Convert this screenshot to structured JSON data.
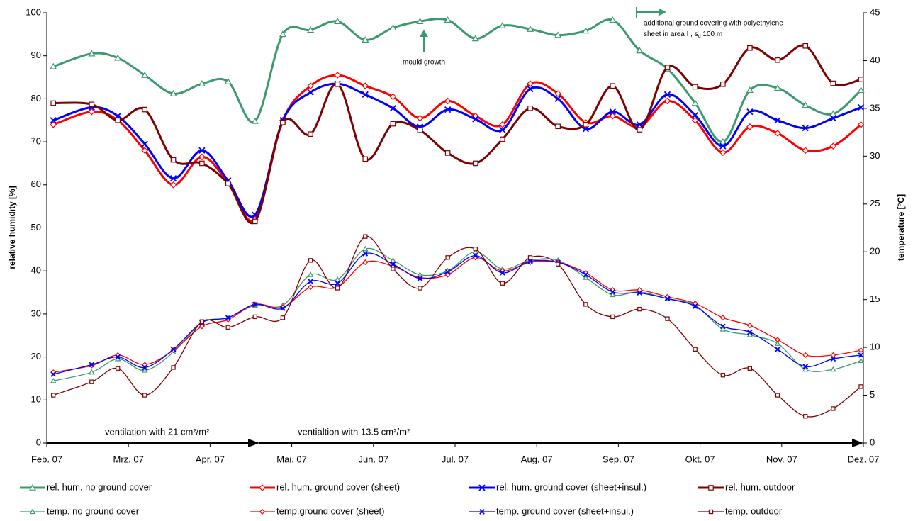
{
  "chart_data": {
    "type": "line",
    "y_label": "relative humidity [%]",
    "y2_label": "temperature [°C]",
    "xlim": [
      0,
      10
    ],
    "xticks": [
      {
        "value": 0,
        "label": "Feb. 07"
      },
      {
        "value": 1,
        "label": "Mrz. 07"
      },
      {
        "value": 2,
        "label": "Apr. 07"
      },
      {
        "value": 3,
        "label": "Mai. 07"
      },
      {
        "value": 4,
        "label": "Jun. 07"
      },
      {
        "value": 5,
        "label": "Jul. 07"
      },
      {
        "value": 6,
        "label": "Aug. 07"
      },
      {
        "value": 7,
        "label": "Sep. 07"
      },
      {
        "value": 8,
        "label": "Okt. 07"
      },
      {
        "value": 9,
        "label": "Nov. 07"
      },
      {
        "value": 10,
        "label": "Dez. 07"
      }
    ],
    "ylim": [
      0,
      100
    ],
    "yticks": [
      0,
      10,
      20,
      30,
      40,
      50,
      60,
      70,
      80,
      90,
      100
    ],
    "y2lim": [
      0,
      45
    ],
    "y2ticks": [
      0,
      5,
      10,
      15,
      20,
      25,
      30,
      35,
      40,
      45
    ],
    "x": [
      0.08,
      0.55,
      0.87,
      1.2,
      1.55,
      1.9,
      2.22,
      2.55,
      2.89,
      3.23,
      3.56,
      3.9,
      4.24,
      4.57,
      4.91,
      5.25,
      5.58,
      5.92,
      6.26,
      6.6,
      6.93,
      7.26,
      7.6,
      7.94,
      8.28,
      8.61,
      8.95,
      9.29,
      9.63,
      9.97
    ],
    "series": [
      {
        "name": "rel. hum. no ground cover",
        "color": "#3a9a6e",
        "marker": "triangle",
        "line_width": 3,
        "axis": "y",
        "values": [
          87.5,
          90.5,
          89.5,
          85.5,
          81.2,
          83.5,
          84,
          74.8,
          95,
          96,
          98,
          93.7,
          96.5,
          98,
          98.3,
          94,
          97,
          96.2,
          94.8,
          95.8,
          98.3,
          91.2,
          87,
          79,
          70,
          82,
          82.5,
          78.5,
          76.5,
          82
        ]
      },
      {
        "name": "rel. hum. ground cover (sheet)",
        "color": "#ff0000",
        "marker": "diamond",
        "line_width": 3,
        "axis": "y",
        "values": [
          74,
          77,
          75,
          68,
          60,
          66.5,
          60.5,
          52,
          75,
          83,
          85.5,
          83,
          80.5,
          75.5,
          79.5,
          76,
          74,
          83.5,
          81.2,
          74.5,
          76,
          73.5,
          79.5,
          75,
          67.5,
          73.5,
          72,
          68,
          69,
          74
        ]
      },
      {
        "name": "rel. hum. ground cover (sheet+insul.)",
        "color": "#0000ff",
        "marker": "x",
        "line_width": 3,
        "axis": "y",
        "values": [
          75,
          78,
          76,
          69.5,
          61.5,
          68,
          61,
          53,
          75,
          81.5,
          83.5,
          81,
          77.8,
          73.5,
          77.5,
          75.3,
          72.8,
          82.3,
          80,
          73,
          77,
          74,
          81,
          76.2,
          69,
          77,
          75,
          73.2,
          75.5,
          78
        ]
      },
      {
        "name": "rel. hum. outdoor",
        "color": "#7f0000",
        "marker": "square",
        "line_width": 3,
        "axis": "y",
        "values": [
          79,
          78.7,
          75,
          77.5,
          65.8,
          65,
          60.3,
          51.5,
          74.5,
          71.8,
          83.4,
          66,
          74.2,
          72.7,
          67.4,
          65,
          70.6,
          77.8,
          73.6,
          74,
          83,
          72.8,
          87.3,
          82.8,
          83.4,
          91.8,
          89,
          92.3,
          83.6,
          84.5
        ]
      },
      {
        "name": "temp. no ground cover",
        "color": "#3a9a6e",
        "marker": "triangle",
        "line_width": 1.3,
        "axis": "y2",
        "values": [
          6.5,
          7.4,
          8.8,
          7.6,
          9.5,
          12.6,
          13.1,
          14.4,
          14.4,
          17.6,
          17.1,
          20.3,
          19.1,
          17.6,
          18,
          20,
          18.2,
          19.1,
          19.1,
          17.3,
          15.5,
          15.8,
          15.1,
          14.4,
          11.9,
          11.3,
          10.4,
          7.7,
          7.7,
          8.6
        ]
      },
      {
        "name": "temp.ground cover (sheet)",
        "color": "#ff0000",
        "marker": "diamond",
        "line_width": 1.3,
        "axis": "y2",
        "values": [
          7.4,
          8.1,
          9.2,
          8.2,
          9.7,
          12.2,
          12.9,
          14.5,
          14.2,
          16.3,
          16.3,
          18.9,
          18.5,
          17.3,
          17.6,
          19.4,
          18,
          18.9,
          18.9,
          17.8,
          16,
          16,
          15.3,
          14.6,
          13.1,
          12.3,
          10.8,
          9.2,
          9.2,
          9.7
        ]
      },
      {
        "name": "temp. ground cover (sheet+insul.)",
        "color": "#0000ff",
        "marker": "x",
        "line_width": 1.3,
        "axis": "y2",
        "values": [
          7.2,
          8.2,
          9,
          7.9,
          9.8,
          12.6,
          13.1,
          14.5,
          14.1,
          16.9,
          16.7,
          19.8,
          18.7,
          17.2,
          17.9,
          19.6,
          17.8,
          19,
          18.9,
          17.6,
          15.8,
          15.7,
          15.1,
          14.3,
          12.2,
          11.6,
          9.8,
          8,
          8.8,
          9.2
        ]
      },
      {
        "name": "temp. outdoor",
        "color": "#7f0000",
        "marker": "square",
        "line_width": 1.3,
        "axis": "y2",
        "values": [
          5,
          6.4,
          7.8,
          5,
          7.9,
          12.7,
          12.1,
          13.2,
          13.1,
          19.1,
          16.2,
          21.6,
          18.2,
          16.2,
          19.4,
          20.3,
          16.7,
          19.4,
          18.7,
          14.5,
          13.2,
          14,
          13,
          9.8,
          7.1,
          7.8,
          5,
          2.8,
          3.6,
          5.9
        ]
      }
    ],
    "annotations": {
      "mould": "mould growth",
      "covering_line1": "additional ground covering with polyethylene",
      "covering_line2": "sheet in area I , s",
      "covering_sub": "d",
      "covering_tail": " 100 m",
      "ventilation_1": "ventilation with 21 cm²/m²",
      "ventilation_2": "ventialtion with 13.5 cm²/m²"
    }
  }
}
